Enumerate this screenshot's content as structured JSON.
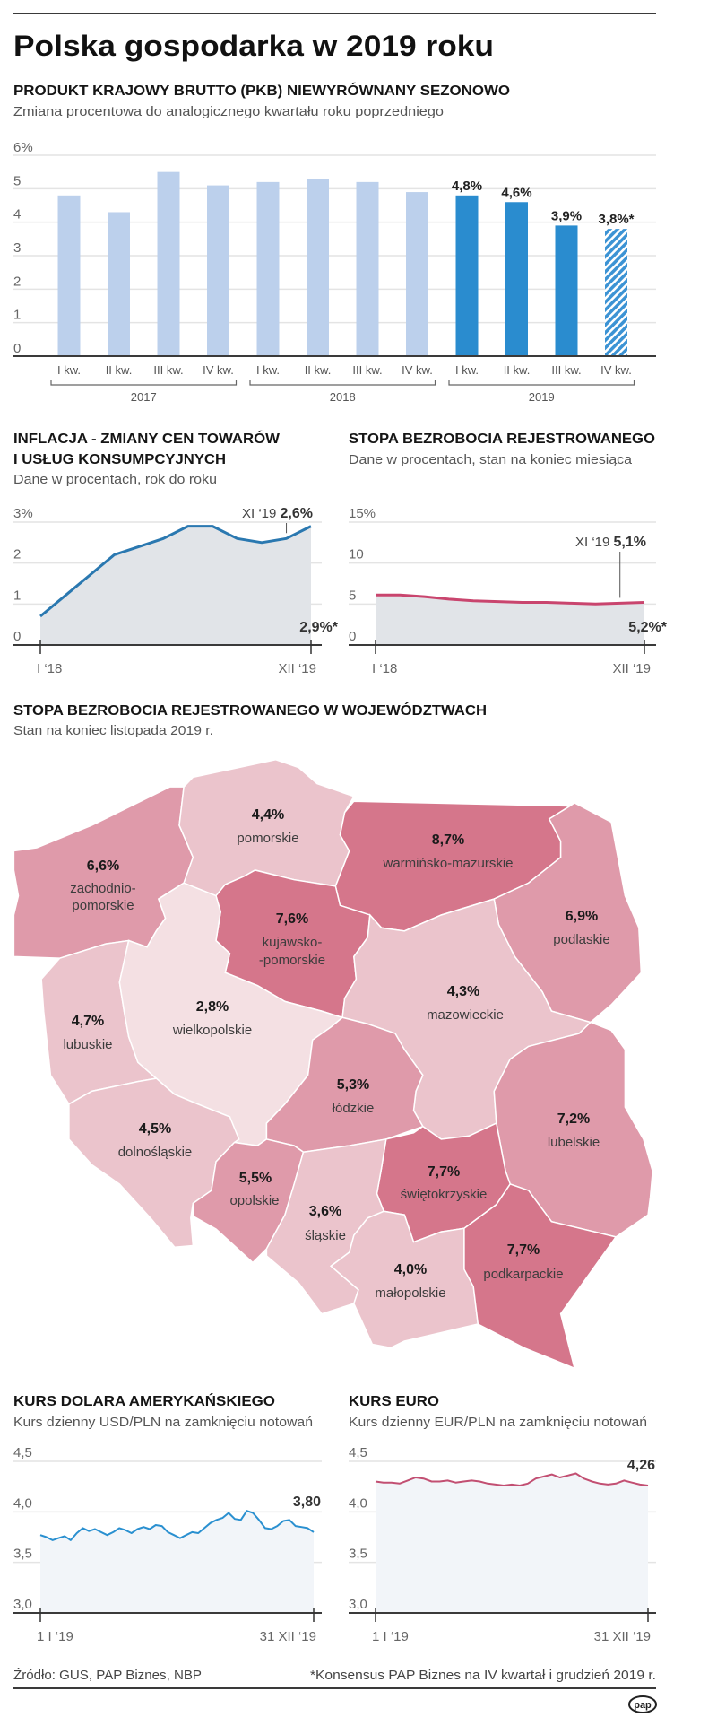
{
  "title": "Polska gospodarka w 2019 roku",
  "chart_data": [
    {
      "type": "bar",
      "title": "PRODUKT KRAJOWY BRUTTO (PKB) NIEWYRÓWNANY SEZONOWO",
      "subtitle": "Zmiana procentowa do analogicznego kwartału roku poprzedniego",
      "categories": [
        "I kw.",
        "II kw.",
        "III kw.",
        "IV kw.",
        "I kw.",
        "II kw.",
        "III kw.",
        "IV kw.",
        "I kw.",
        "II kw.",
        "III kw.",
        "IV kw."
      ],
      "groups": [
        "2017",
        "2018",
        "2019"
      ],
      "values": [
        4.8,
        4.3,
        5.5,
        5.1,
        5.2,
        5.3,
        5.2,
        4.9,
        4.8,
        4.6,
        3.9,
        3.8
      ],
      "value_labels": [
        "",
        "",
        "",
        "",
        "",
        "",
        "",
        "",
        "4,8%",
        "4,6%",
        "3,9%",
        "3,8%*"
      ],
      "highlighted_group": "2019",
      "forecast_category_index": 11,
      "ylim": [
        0,
        6
      ],
      "yticks": [
        0,
        1,
        2,
        3,
        4,
        5,
        6
      ],
      "ytick_labels": [
        "0",
        "1",
        "2",
        "3",
        "4",
        "5",
        "6%"
      ],
      "grid": true,
      "colors": {
        "past": "#bcd0ec",
        "current": "#2a8ccf",
        "forecast_stripe": "#9cc3e8"
      }
    },
    {
      "type": "area",
      "title_lines": [
        "INFLACJA - ZMIANY CEN TOWARÓW",
        "I USŁUG KONSUMPCYJNYCH"
      ],
      "subtitle": "Dane w procentach, rok do roku",
      "values": [
        0.7,
        1.2,
        1.7,
        2.2,
        2.4,
        2.6,
        2.9,
        2.9,
        2.6,
        2.5,
        2.6,
        2.9
      ],
      "x_labels": [
        "I ‘18",
        "XII ‘19"
      ],
      "ylim": [
        0,
        3
      ],
      "yticks": [
        0,
        1,
        2,
        3
      ],
      "ytick_labels": [
        "0",
        "1",
        "2",
        "3%"
      ],
      "annotation": {
        "label": "XI ‘19",
        "value": "2,6%",
        "index": 10
      },
      "end_label": "2,9%*",
      "grid": true,
      "colors": {
        "line": "#2a78b0",
        "fill": "#e1e4e8"
      }
    },
    {
      "type": "area",
      "title": "STOPA BEZROBOCIA REJESTROWANEGO",
      "subtitle": "Dane w procentach, stan na koniec miesiąca",
      "values": [
        6.1,
        6.1,
        5.9,
        5.6,
        5.4,
        5.3,
        5.2,
        5.2,
        5.1,
        5.0,
        5.1,
        5.2
      ],
      "x_labels": [
        "I ‘18",
        "XII ‘19"
      ],
      "ylim": [
        0,
        15
      ],
      "yticks": [
        0,
        5,
        10,
        15
      ],
      "ytick_labels": [
        "0",
        "5",
        "10",
        "15%"
      ],
      "annotation": {
        "label": "XI ‘19",
        "value": "5,1%",
        "index": 10
      },
      "end_label": "5,2%*",
      "grid": true,
      "colors": {
        "line": "#c9456e",
        "fill": "#e1e4e8"
      }
    },
    {
      "type": "area",
      "title": "KURS DOLARA AMERYKAŃSKIEGO",
      "subtitle": "Kurs dzienny USD/PLN na zamknięciu notowań",
      "values": [
        3.77,
        3.75,
        3.72,
        3.74,
        3.76,
        3.72,
        3.79,
        3.84,
        3.81,
        3.83,
        3.8,
        3.77,
        3.8,
        3.84,
        3.82,
        3.79,
        3.83,
        3.85,
        3.83,
        3.87,
        3.86,
        3.8,
        3.77,
        3.74,
        3.77,
        3.8,
        3.79,
        3.84,
        3.89,
        3.92,
        3.94,
        3.99,
        3.93,
        3.92,
        4.01,
        3.99,
        3.92,
        3.84,
        3.83,
        3.86,
        3.91,
        3.92,
        3.86,
        3.85,
        3.84,
        3.8
      ],
      "x_labels": [
        "1 I ‘19",
        "31 XII ‘19"
      ],
      "ylim": [
        3.0,
        4.5
      ],
      "yticks": [
        3.0,
        3.5,
        4.0,
        4.5
      ],
      "ytick_labels": [
        "3,0",
        "3,5",
        "4,0",
        "4,5"
      ],
      "end_label": "3,80",
      "grid": true,
      "colors": {
        "line": "#2a90d0",
        "fill": "#f2f5f9"
      }
    },
    {
      "type": "area",
      "title": "KURS EURO",
      "subtitle": "Kurs dzienny EUR/PLN na zamknięciu notowań",
      "values": [
        4.3,
        4.29,
        4.29,
        4.28,
        4.31,
        4.34,
        4.33,
        4.3,
        4.3,
        4.31,
        4.29,
        4.3,
        4.31,
        4.3,
        4.28,
        4.27,
        4.26,
        4.27,
        4.26,
        4.28,
        4.33,
        4.35,
        4.37,
        4.34,
        4.36,
        4.38,
        4.33,
        4.3,
        4.28,
        4.27,
        4.28,
        4.31,
        4.29,
        4.27,
        4.26
      ],
      "x_labels": [
        "1 I ‘19",
        "31 XII ‘19"
      ],
      "ylim": [
        3.0,
        4.5
      ],
      "yticks": [
        3.0,
        3.5,
        4.0,
        4.5
      ],
      "ytick_labels": [
        "3,0",
        "3,5",
        "4,0",
        "4,5"
      ],
      "end_label": "4,26",
      "grid": true,
      "colors": {
        "line": "#c24f72",
        "fill": "#f2f5f9"
      }
    }
  ],
  "map": {
    "title": "STOPA BEZROBOCIA REJESTROWANEGO W WOJEWÓDZTWACH",
    "subtitle": "Stan na koniec listopada 2019 r.",
    "provinces": [
      {
        "name": "zachodnio-",
        "name2": "pomorskie",
        "rate": "6,6%",
        "value": 6.6,
        "color": "#df9aaa"
      },
      {
        "name": "pomorskie",
        "rate": "4,4%",
        "value": 4.4,
        "color": "#ebc4cc"
      },
      {
        "name": "warmińsko-mazurskie",
        "rate": "8,7%",
        "value": 8.7,
        "color": "#d5768b"
      },
      {
        "name": "kujawsko-",
        "name2": "-pomorskie",
        "rate": "7,6%",
        "value": 7.6,
        "color": "#d5768b"
      },
      {
        "name": "podlaskie",
        "rate": "6,9%",
        "value": 6.9,
        "color": "#df9aaa"
      },
      {
        "name": "lubuskie",
        "rate": "4,7%",
        "value": 4.7,
        "color": "#ebc4cc"
      },
      {
        "name": "wielkopolskie",
        "rate": "2,8%",
        "value": 2.8,
        "color": "#f4e0e3"
      },
      {
        "name": "mazowieckie",
        "rate": "4,3%",
        "value": 4.3,
        "color": "#ebc4cc"
      },
      {
        "name": "łódzkie",
        "rate": "5,3%",
        "value": 5.3,
        "color": "#df9aaa"
      },
      {
        "name": "lubelskie",
        "rate": "7,2%",
        "value": 7.2,
        "color": "#df9aaa"
      },
      {
        "name": "dolnośląskie",
        "rate": "4,5%",
        "value": 4.5,
        "color": "#ebc4cc"
      },
      {
        "name": "opolskie",
        "rate": "5,5%",
        "value": 5.5,
        "color": "#df9aaa"
      },
      {
        "name": "świętokrzyskie",
        "rate": "7,7%",
        "value": 7.7,
        "color": "#d5768b"
      },
      {
        "name": "śląskie",
        "rate": "3,6%",
        "value": 3.6,
        "color": "#ebc4cc"
      },
      {
        "name": "małopolskie",
        "rate": "4,0%",
        "value": 4.0,
        "color": "#ebc4cc"
      },
      {
        "name": "podkarpackie",
        "rate": "7,7%",
        "value": 7.7,
        "color": "#d5768b"
      }
    ]
  },
  "footer": {
    "source": "Źródło: GUS, PAP Biznes, NBP",
    "note": "*Konsensus PAP Biznes na IV kwartał i grudzień 2019 r.",
    "logo": "pap"
  }
}
